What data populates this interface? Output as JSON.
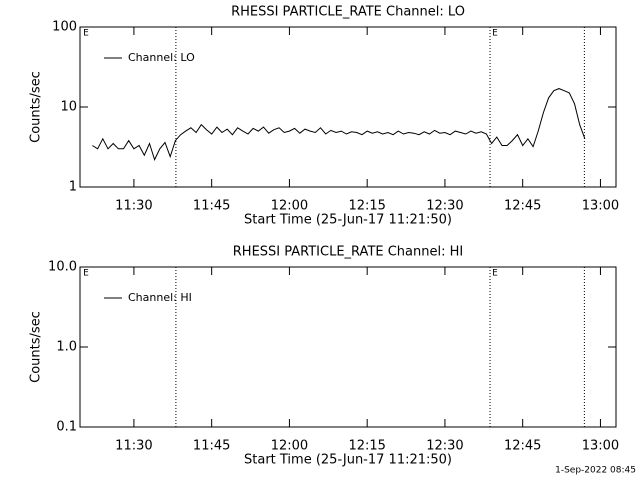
{
  "chart_data": [
    {
      "type": "line",
      "title": "RHESSI PARTICLE_RATE Channel: LO",
      "x_label": "Start Time (25-Jun-17 11:21:50)",
      "y_label": "Counts/sec",
      "log_y": true,
      "ylim": [
        1,
        100
      ],
      "yticks": [
        1,
        10,
        100
      ],
      "xlim": [
        679.6,
        783
      ],
      "xticks": [
        {
          "value": 690,
          "label": "11:30"
        },
        {
          "value": 705,
          "label": "11:45"
        },
        {
          "value": 720,
          "label": "12:00"
        },
        {
          "value": 735,
          "label": "12:15"
        },
        {
          "value": 750,
          "label": "12:30"
        },
        {
          "value": 765,
          "label": "12:45"
        },
        {
          "value": 780,
          "label": "13:00"
        }
      ],
      "event_lines": [
        698.1,
        758.7,
        776.9
      ],
      "annotations": [
        {
          "text": "E",
          "x": 680.4
        },
        {
          "text": "E",
          "x": 759.3
        }
      ],
      "legend": "upper left",
      "series": [
        {
          "name": "Channel: LO",
          "color": "#000000",
          "x": [
            682,
            683,
            684,
            685,
            686,
            687,
            688,
            689,
            690,
            691,
            692,
            693,
            694,
            695,
            696,
            697,
            698,
            699,
            700,
            701,
            702,
            703,
            704,
            705,
            706,
            707,
            708,
            709,
            710,
            711,
            712,
            713,
            714,
            715,
            716,
            717,
            718,
            719,
            720,
            721,
            722,
            723,
            724,
            725,
            726,
            727,
            728,
            729,
            730,
            731,
            732,
            733,
            734,
            735,
            736,
            737,
            738,
            739,
            740,
            741,
            742,
            743,
            744,
            745,
            746,
            747,
            748,
            749,
            750,
            751,
            752,
            753,
            754,
            755,
            756,
            757,
            758,
            759,
            760,
            761,
            762,
            763,
            764,
            765,
            766,
            767,
            768,
            769,
            770,
            771,
            772,
            773,
            774,
            775,
            776,
            777
          ],
          "values": [
            3.3,
            3.0,
            4.0,
            3.0,
            3.5,
            3.0,
            3.0,
            3.8,
            3.0,
            3.3,
            2.5,
            3.5,
            2.2,
            3.0,
            3.6,
            2.4,
            3.8,
            4.5,
            5.0,
            5.5,
            4.8,
            6.0,
            5.2,
            4.6,
            5.6,
            4.8,
            5.3,
            4.5,
            5.5,
            5.0,
            4.6,
            5.4,
            5.0,
            5.6,
            4.7,
            5.2,
            5.5,
            4.8,
            5.0,
            5.4,
            4.7,
            5.3,
            5.0,
            4.8,
            5.5,
            4.6,
            5.1,
            4.8,
            5.0,
            4.6,
            4.9,
            4.8,
            4.5,
            5.0,
            4.7,
            4.9,
            4.6,
            4.8,
            4.5,
            5.0,
            4.6,
            4.8,
            4.7,
            4.5,
            4.9,
            4.6,
            5.1,
            4.7,
            4.8,
            4.5,
            5.0,
            4.8,
            4.6,
            5.0,
            4.7,
            4.9,
            4.6,
            3.5,
            4.2,
            3.3,
            3.3,
            3.8,
            4.5,
            3.3,
            4.0,
            3.2,
            5.0,
            8.5,
            13,
            16,
            17,
            16,
            15,
            11,
            6,
            4
          ]
        }
      ]
    },
    {
      "type": "line",
      "title": "RHESSI PARTICLE_RATE Channel: HI",
      "x_label": "Start Time (25-Jun-17 11:21:50)",
      "y_label": "Counts/sec",
      "log_y": true,
      "ylim": [
        0.1,
        10
      ],
      "yticks": [
        0.1,
        {
          "value": 1,
          "label": "1.0"
        },
        {
          "value": 10,
          "label": "10.0"
        }
      ],
      "xlim": [
        679.6,
        783
      ],
      "xticks": [
        {
          "value": 690,
          "label": "11:30"
        },
        {
          "value": 705,
          "label": "11:45"
        },
        {
          "value": 720,
          "label": "12:00"
        },
        {
          "value": 735,
          "label": "12:15"
        },
        {
          "value": 750,
          "label": "12:30"
        },
        {
          "value": 765,
          "label": "12:45"
        },
        {
          "value": 780,
          "label": "13:00"
        }
      ],
      "event_lines": [
        698.1,
        758.7,
        776.9
      ],
      "annotations": [
        {
          "text": "E",
          "x": 680.4
        },
        {
          "text": "E",
          "x": 759.3
        }
      ],
      "legend": "upper left",
      "series": [
        {
          "name": "Channel: HI",
          "color": "#000000",
          "x": [],
          "values": []
        }
      ]
    }
  ],
  "footer": "1-Sep-2022 08:45"
}
